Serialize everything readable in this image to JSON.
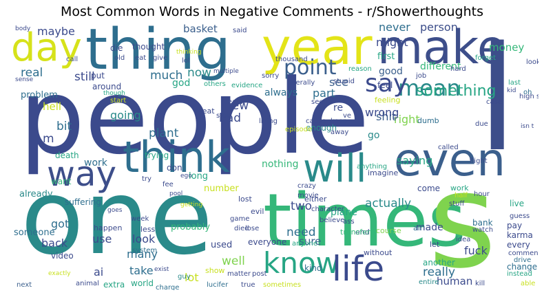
{
  "title": "Most Common Words in Negative Comments - r/Showerthoughts",
  "words": [
    {
      "text": "people",
      "color": "#3b4a8c"
    },
    {
      "text": "one",
      "color": "#2a8a8a"
    },
    {
      "text": "times",
      "color": "#35b779"
    },
    {
      "text": "s",
      "color": "#7fd34e"
    },
    {
      "text": "l",
      "color": "#3d4e8a"
    },
    {
      "text": "thing",
      "color": "#2e6e8e"
    },
    {
      "text": "year",
      "color": "#e3e418"
    },
    {
      "text": "make",
      "color": "#3d4e8a"
    },
    {
      "text": "day",
      "color": "#d6e21a"
    },
    {
      "text": "think",
      "color": "#2e6e8e"
    },
    {
      "text": "way",
      "color": "#3d4e8a"
    },
    {
      "text": "will",
      "color": "#2a8a8a"
    },
    {
      "text": "even",
      "color": "#3b5f8c"
    },
    {
      "text": "know",
      "color": "#26a584"
    },
    {
      "text": "life",
      "color": "#3b4a8c"
    },
    {
      "text": "point",
      "color": "#3b5f8c"
    },
    {
      "text": "mean",
      "color": "#2a8a8a"
    },
    {
      "text": "say",
      "color": "#3b4a8c"
    },
    {
      "text": "maybe",
      "color": "#3b4a8c"
    },
    {
      "text": "basket",
      "color": "#3b5f8c"
    },
    {
      "text": "never",
      "color": "#2e6e8e"
    },
    {
      "text": "person",
      "color": "#3d4e8a"
    },
    {
      "text": "money",
      "color": "#35b779"
    },
    {
      "text": "might",
      "color": "#3b4a8c"
    },
    {
      "text": "first",
      "color": "#26a584"
    },
    {
      "text": "good",
      "color": "#3b5f8c"
    },
    {
      "text": "real",
      "color": "#2e6e8e"
    },
    {
      "text": "still",
      "color": "#3b4a8c"
    },
    {
      "text": "much",
      "color": "#2e6e8e"
    },
    {
      "text": "now",
      "color": "#2a8a8a"
    },
    {
      "text": "god",
      "color": "#26a584"
    },
    {
      "text": "different",
      "color": "#35b779"
    },
    {
      "text": "see",
      "color": "#3b5f8c"
    },
    {
      "text": "something",
      "color": "#26a584"
    },
    {
      "text": "right",
      "color": "#7fd34e"
    },
    {
      "text": "shit",
      "color": "#3b5f8c"
    },
    {
      "text": "saying",
      "color": "#26a584"
    },
    {
      "text": "wrong",
      "color": "#3b4a8c"
    },
    {
      "text": "part",
      "color": "#2e6e8e"
    },
    {
      "text": "new",
      "color": "#3b4a8c"
    },
    {
      "text": "bad",
      "color": "#3b4a8c"
    },
    {
      "text": "hell",
      "color": "#c8e020"
    },
    {
      "text": "bit",
      "color": "#2e6e8e"
    },
    {
      "text": "m",
      "color": "#3b4a8c"
    },
    {
      "text": "plant",
      "color": "#2e6e8e"
    },
    {
      "text": "going",
      "color": "#2a8a8a"
    },
    {
      "text": "problem",
      "color": "#2e6e8e"
    },
    {
      "text": "work",
      "color": "#2e6e8e"
    },
    {
      "text": "already",
      "color": "#2a8a8a"
    },
    {
      "text": "always",
      "color": "#2e6e8e"
    },
    {
      "text": "nothing",
      "color": "#35b779"
    },
    {
      "text": "go",
      "color": "#2a8a8a"
    },
    {
      "text": "re",
      "color": "#3b4a8c"
    },
    {
      "text": "actually",
      "color": "#2a8a8a"
    },
    {
      "text": "two",
      "color": "#3b4a8c"
    },
    {
      "text": "need",
      "color": "#2e6e8e"
    },
    {
      "text": "plane",
      "color": "#26a584"
    },
    {
      "text": "sure",
      "color": "#3b5f8c"
    },
    {
      "text": "well",
      "color": "#7fd34e"
    },
    {
      "text": "really",
      "color": "#2e6e8e"
    },
    {
      "text": "fuck",
      "color": "#3b4a8c"
    },
    {
      "text": "made",
      "color": "#3b4a8c"
    },
    {
      "text": "human",
      "color": "#3b4a8c"
    },
    {
      "text": "got",
      "color": "#2e6e8e"
    },
    {
      "text": "back",
      "color": "#3b4a8c"
    },
    {
      "text": "use",
      "color": "#3b4a8c"
    },
    {
      "text": "look",
      "color": "#3b4a8c"
    },
    {
      "text": "many",
      "color": "#2e6e8e"
    },
    {
      "text": "take",
      "color": "#2e6e8e"
    },
    {
      "text": "lot",
      "color": "#c8e020"
    },
    {
      "text": "ai",
      "color": "#3b4a8c"
    },
    {
      "text": "probably",
      "color": "#35b779"
    },
    {
      "text": "someone",
      "color": "#2e6e8e"
    },
    {
      "text": "used",
      "color": "#3b4a8c"
    },
    {
      "text": "number",
      "color": "#c8e020"
    },
    {
      "text": "long",
      "color": "#26a584"
    },
    {
      "text": "trying",
      "color": "#26a584"
    },
    {
      "text": "death",
      "color": "#26a584"
    },
    {
      "text": "want",
      "color": "#35b779"
    },
    {
      "text": "suffering",
      "color": "#2e6e8e"
    },
    {
      "text": "video",
      "color": "#3b4a8c"
    },
    {
      "text": "extra",
      "color": "#26a584"
    },
    {
      "text": "world",
      "color": "#26a584"
    },
    {
      "text": "show",
      "color": "#c8e020"
    },
    {
      "text": "kind",
      "color": "#2e6e8e"
    },
    {
      "text": "everyone",
      "color": "#3b4a8c"
    },
    {
      "text": "another",
      "color": "#26a584"
    },
    {
      "text": "change",
      "color": "#2e6e8e"
    },
    {
      "text": "karma",
      "color": "#3b4a8c"
    },
    {
      "text": "every",
      "color": "#3b4a8c"
    },
    {
      "text": "pay",
      "color": "#3b4a8c"
    },
    {
      "text": "bank",
      "color": "#2e6e8e"
    },
    {
      "text": "live",
      "color": "#26a584"
    },
    {
      "text": "come",
      "color": "#3b4a8c"
    },
    {
      "text": "either",
      "color": "#3b4a8c"
    },
    {
      "text": "end",
      "color": "#3b4a8c"
    },
    {
      "text": "without",
      "color": "#3b4a8c"
    },
    {
      "text": "transfer",
      "color": "#35b779"
    },
    {
      "text": "enough",
      "color": "#2a8a8a"
    },
    {
      "text": "feeling",
      "color": "#c8e020"
    },
    {
      "text": "imagine",
      "color": "#3b4a8c"
    },
    {
      "text": "dumb",
      "color": "#2e6e8e"
    },
    {
      "text": "thought",
      "color": "#3b4a8c"
    },
    {
      "text": "die",
      "color": "#3b4a8c"
    },
    {
      "text": "put",
      "color": "#3b4a8c"
    },
    {
      "text": "around",
      "color": "#3b4a8c"
    },
    {
      "text": "feel",
      "color": "#3b4a8c"
    },
    {
      "text": "seat",
      "color": "#3b4a8c"
    },
    {
      "text": "don",
      "color": "#3b4a8c"
    },
    {
      "text": "t",
      "color": "#3b4a8c"
    },
    {
      "text": "lost",
      "color": "#3b4a8c"
    },
    {
      "text": "evil",
      "color": "#3b4a8c"
    },
    {
      "text": "happen",
      "color": "#3b4a8c"
    },
    {
      "text": "less",
      "color": "#3b4a8c"
    },
    {
      "text": "system",
      "color": "#2e6e8e"
    },
    {
      "text": "guy",
      "color": "#2a8a8a"
    },
    {
      "text": "charge",
      "color": "#2e6e8e"
    },
    {
      "text": "lucifer",
      "color": "#2e6e8e"
    },
    {
      "text": "true",
      "color": "#3b4a8c"
    },
    {
      "text": "sometimes",
      "color": "#c8e020"
    },
    {
      "text": "entire",
      "color": "#2a8a8a"
    },
    {
      "text": "kill",
      "color": "#3b4a8c"
    },
    {
      "text": "able",
      "color": "#c8e020"
    },
    {
      "text": "next",
      "color": "#3b5f8c"
    },
    {
      "text": "animal",
      "color": "#3b4a8c"
    },
    {
      "text": "exactly",
      "color": "#c8e020"
    },
    {
      "text": "exist",
      "color": "#3b4a8c"
    },
    {
      "text": "post",
      "color": "#3b4a8c"
    },
    {
      "text": "matter",
      "color": "#3b4a8c"
    },
    {
      "text": "game",
      "color": "#3b4a8c"
    },
    {
      "text": "week",
      "color": "#3b4a8c"
    },
    {
      "text": "anyone",
      "color": "#26a584"
    },
    {
      "text": "idea",
      "color": "#3b4a8c"
    },
    {
      "text": "let",
      "color": "#3b4a8c"
    },
    {
      "text": "air",
      "color": "#2e6e8e"
    },
    {
      "text": "course",
      "color": "#7fd34e"
    },
    {
      "text": "work",
      "color": "#26a584"
    },
    {
      "text": "hour",
      "color": "#3b4a8c"
    },
    {
      "text": "half",
      "color": "#c8e020"
    },
    {
      "text": "stuff",
      "color": "#3b4a8c"
    },
    {
      "text": "guess",
      "color": "#3b4a8c"
    },
    {
      "text": "watch",
      "color": "#3b4a8c"
    },
    {
      "text": "instead",
      "color": "#26a584"
    },
    {
      "text": "comment",
      "color": "#3b4a8c"
    },
    {
      "text": "drive",
      "color": "#2e6e8e"
    },
    {
      "text": "flight",
      "color": "#3b4a8c"
    },
    {
      "text": "called",
      "color": "#3b4a8c"
    },
    {
      "text": "due",
      "color": "#3b4a8c"
    },
    {
      "text": "case",
      "color": "#3b4a8c"
    },
    {
      "text": "high school",
      "color": "#3b4a8c"
    },
    {
      "text": "last",
      "color": "#26a584"
    },
    {
      "text": "kid",
      "color": "#3b4a8c"
    },
    {
      "text": "looking",
      "color": "#3b4a8c"
    },
    {
      "text": "forget",
      "color": "#26a584"
    },
    {
      "text": "hard",
      "color": "#3b4a8c"
    },
    {
      "text": "job",
      "color": "#3b4a8c"
    },
    {
      "text": "stupid",
      "color": "#3b4a8c"
    },
    {
      "text": "reason",
      "color": "#26a584"
    },
    {
      "text": "literally",
      "color": "#3b4a8c"
    },
    {
      "text": "evidence",
      "color": "#26a584"
    },
    {
      "text": "thousand",
      "color": "#3b4a8c"
    },
    {
      "text": "sorry",
      "color": "#3b4a8c"
    },
    {
      "text": "multiple",
      "color": "#3b4a8c"
    },
    {
      "text": "others",
      "color": "#26a584"
    },
    {
      "text": "least",
      "color": "#3b4a8c"
    },
    {
      "text": "seen",
      "color": "#3b4a8c"
    },
    {
      "text": "cause",
      "color": "#3b4a8c"
    },
    {
      "text": "episode",
      "color": "#c8e020"
    },
    {
      "text": "away",
      "color": "#3b4a8c"
    },
    {
      "text": "keep",
      "color": "#3b4a8c"
    },
    {
      "text": "ve",
      "color": "#3b4a8c"
    },
    {
      "text": "anything",
      "color": "#26a584"
    },
    {
      "text": "crazy",
      "color": "#3b4a8c"
    },
    {
      "text": "movie",
      "color": "#3b4a8c"
    },
    {
      "text": "character",
      "color": "#3b4a8c"
    },
    {
      "text": "believe",
      "color": "#3b4a8c"
    },
    {
      "text": "ass",
      "color": "#3b4a8c"
    },
    {
      "text": "lose",
      "color": "#3b4a8c"
    },
    {
      "text": "died",
      "color": "#3b4a8c"
    },
    {
      "text": "living",
      "color": "#3b4a8c"
    },
    {
      "text": "stop",
      "color": "#3b4a8c"
    },
    {
      "text": "said",
      "color": "#3b4a8c"
    },
    {
      "text": "lol",
      "color": "#3b4a8c"
    },
    {
      "text": "give",
      "color": "#3b4a8c"
    },
    {
      "text": "eat",
      "color": "#3b4a8c"
    },
    {
      "text": "old",
      "color": "#3b4a8c"
    },
    {
      "text": "call",
      "color": "#3b4a8c"
    },
    {
      "text": "body",
      "color": "#3b4a8c"
    },
    {
      "text": "sense",
      "color": "#3b4a8c"
    },
    {
      "text": "though",
      "color": "#26a584"
    },
    {
      "text": "start",
      "color": "#c8e020"
    },
    {
      "text": "thinking",
      "color": "#c8e020"
    },
    {
      "text": "try",
      "color": "#3b4a8c"
    },
    {
      "text": "getting",
      "color": "#c8e020"
    },
    {
      "text": "goes",
      "color": "#3b4a8c"
    },
    {
      "text": "fee",
      "color": "#3b4a8c"
    },
    {
      "text": "ego",
      "color": "#3b4a8c"
    },
    {
      "text": "pool",
      "color": "#3b4a8c"
    },
    {
      "text": "isn t",
      "color": "#3b4a8c"
    },
    {
      "text": "oh",
      "color": "#2e6e8e"
    }
  ]
}
